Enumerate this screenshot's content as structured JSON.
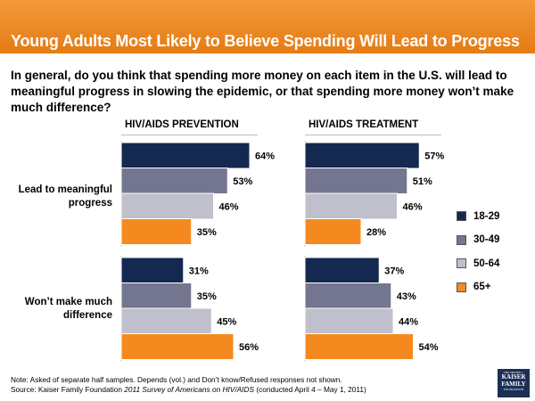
{
  "title": "Young Adults Most Likely to Believe Spending Will Lead to Progress",
  "question": "In general, do you think that spending more money on each item in the U.S. will lead to meaningful progress in slowing the epidemic, or that spending more money won’t make much difference?",
  "panels": [
    {
      "name": "HIV/AIDS PREVENTION"
    },
    {
      "name": "HIV/AIDS TREATMENT"
    }
  ],
  "groups": [
    {
      "label": "Lead to meaningful progress"
    },
    {
      "label": "Won’t make much difference"
    }
  ],
  "legend": [
    {
      "label": "18-29",
      "color": "#15284f"
    },
    {
      "label": "30-49",
      "color": "#74758f"
    },
    {
      "label": "50-64",
      "color": "#bfc0cb"
    },
    {
      "label": "65+",
      "color": "#f48a1f"
    }
  ],
  "chart_data": {
    "type": "bar",
    "orientation": "horizontal",
    "title": "Young Adults Most Likely to Believe Spending Will Lead to Progress",
    "panels": [
      "HIV/AIDS PREVENTION",
      "HIV/AIDS TREATMENT"
    ],
    "categories": [
      "Lead to meaningful progress",
      "Won’t make much difference"
    ],
    "unit": "%",
    "xlim": [
      0,
      100
    ],
    "series": [
      {
        "name": "18-29",
        "color": "#15284f",
        "values": [
          [
            64,
            31
          ],
          [
            57,
            37
          ]
        ]
      },
      {
        "name": "30-49",
        "color": "#74758f",
        "values": [
          [
            53,
            35
          ],
          [
            51,
            43
          ]
        ]
      },
      {
        "name": "50-64",
        "color": "#bfc0cb",
        "values": [
          [
            46,
            45
          ],
          [
            46,
            44
          ]
        ]
      },
      {
        "name": "65+",
        "color": "#f48a1f",
        "values": [
          [
            35,
            56
          ],
          [
            28,
            54
          ]
        ]
      }
    ]
  },
  "note": "Note: Asked of separate half samples. Depends (vol.) and Don’t know/Refused responses not shown.",
  "source_prefix": "Source: Kaiser Family Foundation ",
  "source_italic": "2011 Survey of Americans on HIV/AIDS",
  "source_suffix": " (conducted April 4 – May 1, 2011)",
  "logo": {
    "top": "THE HENRY J.",
    "line1": "KAISER",
    "line2": "FAMILY",
    "bottom": "FOUNDATION"
  }
}
